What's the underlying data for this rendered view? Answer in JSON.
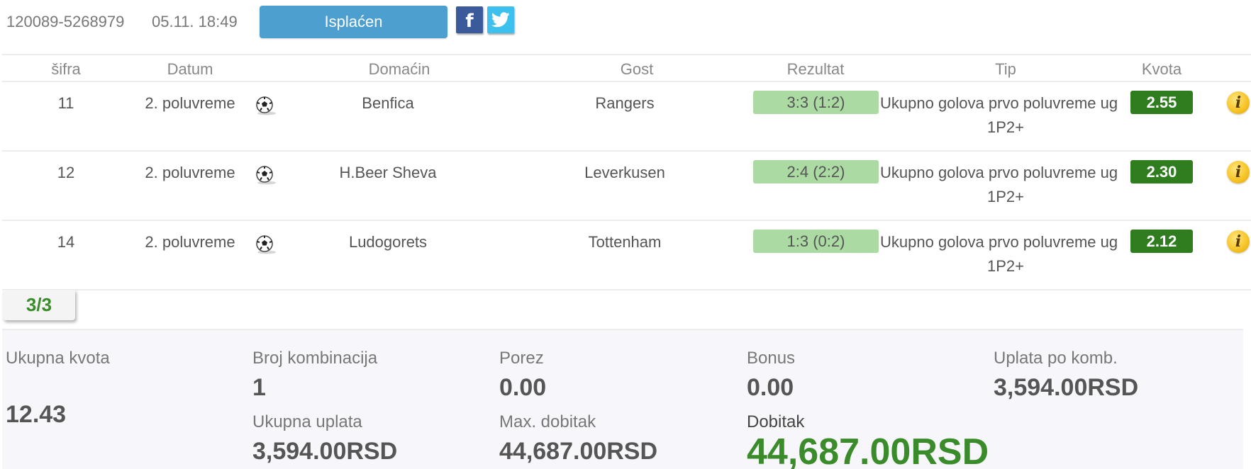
{
  "ticket": {
    "id": "120089-5268979",
    "date": "05.11. 18:49",
    "status_label": "Isplaćen",
    "facebook_glyph": "f"
  },
  "table": {
    "headers": [
      "šifra",
      "Datum",
      "Domaćin",
      "Gost",
      "Rezultat",
      "Tip",
      "Kvota"
    ],
    "rows": [
      {
        "code": "11",
        "period": "2. poluvreme",
        "sport_icon": "soccer-ball-icon",
        "home": "Benfica",
        "away": "Rangers",
        "result": "3:3 (1:2)",
        "tip_name": "Ukupno golova prvo poluvreme ug",
        "tip_code": "1P2+",
        "odd": "2.55",
        "info_glyph": "i"
      },
      {
        "code": "12",
        "period": "2. poluvreme",
        "sport_icon": "soccer-ball-icon",
        "home": "H.Beer Sheva",
        "away": "Leverkusen",
        "result": "2:4 (2:2)",
        "tip_name": "Ukupno golova prvo poluvreme ug",
        "tip_code": "1P2+",
        "odd": "2.30",
        "info_glyph": "i"
      },
      {
        "code": "14",
        "period": "2. poluvreme",
        "sport_icon": "soccer-ball-icon",
        "home": "Ludogorets",
        "away": "Tottenham",
        "result": "1:3 (0:2)",
        "tip_name": "Ukupno golova prvo poluvreme ug",
        "tip_code": "1P2+",
        "odd": "2.12",
        "info_glyph": "i"
      }
    ]
  },
  "tally": "3/3",
  "summary": {
    "total_odds_label": "Ukupna kvota",
    "total_odds": "12.43",
    "combinations_label": "Broj kombinacija",
    "combinations": "1",
    "total_stake_label": "Ukupna uplata",
    "total_stake": "3,594.00RSD",
    "tax_label": "Porez",
    "tax": "0.00",
    "max_win_label": "Max. dobitak",
    "max_win": "44,687.00RSD",
    "bonus_label": "Bonus",
    "bonus": "0.00",
    "win_label": "Dobitak",
    "win": "44,687.00RSD",
    "stake_per_combo_label": "Uplata po komb.",
    "stake_per_combo": "3,594.00RSD"
  },
  "colors": {
    "status_button": "#4d9fd0",
    "facebook": "#3b5a99",
    "twitter": "#3ec0ee",
    "result_badge": "#abdba3",
    "odd_badge": "#2f7d1f",
    "win_green": "#3a8c2a"
  }
}
